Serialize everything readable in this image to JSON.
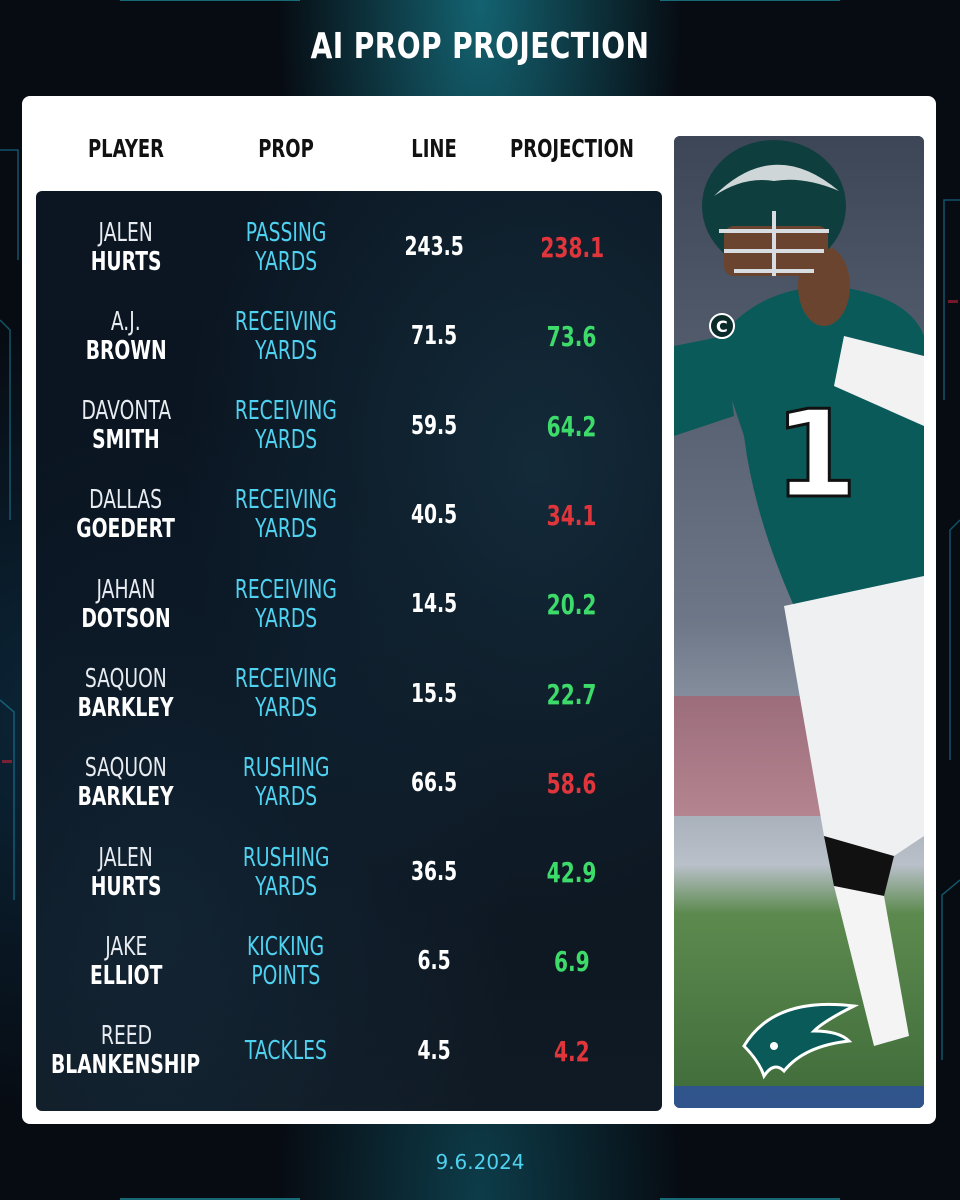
{
  "title": "AI PROP PROJECTION",
  "headers": {
    "player": "PLAYER",
    "prop": "PROP",
    "line": "LINE",
    "projection": "PROJECTION"
  },
  "rows": [
    {
      "first": "JALEN",
      "last": "HURTS",
      "prop1": "PASSING",
      "prop2": "YARDS",
      "line": "243.5",
      "projection": "238.1",
      "status": "under"
    },
    {
      "first": "A.J.",
      "last": "BROWN",
      "prop1": "RECEIVING",
      "prop2": "YARDS",
      "line": "71.5",
      "projection": "73.6",
      "status": "over"
    },
    {
      "first": "DAVONTA",
      "last": "SMITH",
      "prop1": "RECEIVING",
      "prop2": "YARDS",
      "line": "59.5",
      "projection": "64.2",
      "status": "over"
    },
    {
      "first": "DALLAS",
      "last": "GOEDERT",
      "prop1": "RECEIVING",
      "prop2": "YARDS",
      "line": "40.5",
      "projection": "34.1",
      "status": "under"
    },
    {
      "first": "JAHAN",
      "last": "DOTSON",
      "prop1": "RECEIVING",
      "prop2": "YARDS",
      "line": "14.5",
      "projection": "20.2",
      "status": "over"
    },
    {
      "first": "SAQUON",
      "last": "BARKLEY",
      "prop1": "RECEIVING",
      "prop2": "YARDS",
      "line": "15.5",
      "projection": "22.7",
      "status": "over"
    },
    {
      "first": "SAQUON",
      "last": "BARKLEY",
      "prop1": "RUSHING",
      "prop2": "YARDS",
      "line": "66.5",
      "projection": "58.6",
      "status": "under"
    },
    {
      "first": "JALEN",
      "last": "HURTS",
      "prop1": "RUSHING",
      "prop2": "YARDS",
      "line": "36.5",
      "projection": "42.9",
      "status": "over"
    },
    {
      "first": "JAKE",
      "last": "ELLIOT",
      "prop1": "KICKING",
      "prop2": "POINTS",
      "line": "6.5",
      "projection": "6.9",
      "status": "over"
    },
    {
      "first": "REED",
      "last": "BLANKENSHIP",
      "prop1": "TACKLES",
      "prop2": "",
      "line": "4.5",
      "projection": "4.2",
      "status": "under"
    }
  ],
  "colors": {
    "over": "#3ddc6a",
    "under": "#e0353b",
    "accent": "#4fd1f0",
    "jersey": "#0b5a5a"
  },
  "photo": {
    "jersey_number": "1",
    "captain_patch": "C",
    "logo_icon": "eagle-logo-icon"
  },
  "date": "9.6.2024"
}
